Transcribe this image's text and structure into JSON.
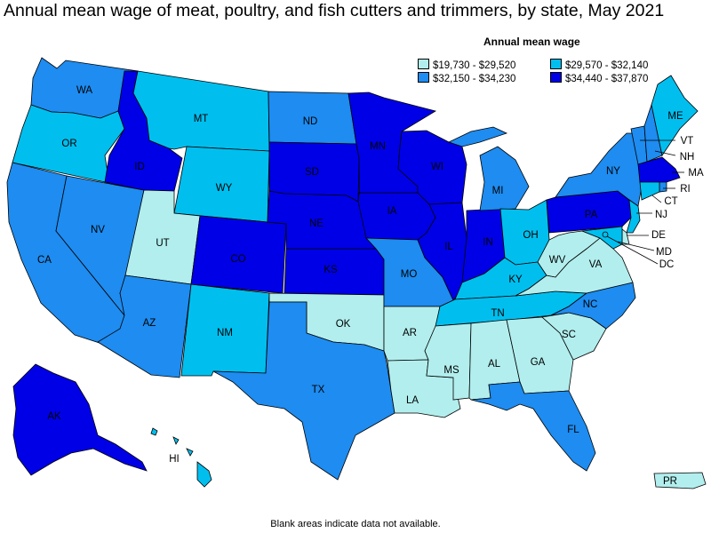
{
  "title": "Annual mean wage of meat, poultry, and fish cutters and trimmers, by state, May 2021",
  "legend": {
    "title": "Annual mean wage",
    "items": [
      {
        "label": "$19,730 - $29,520",
        "color": "#b2eeee"
      },
      {
        "label": "$29,570 - $32,140",
        "color": "#00bfef"
      },
      {
        "label": "$32,150 - $34,230",
        "color": "#1e8cf0"
      },
      {
        "label": "$34,440 - $37,870",
        "color": "#0000e6"
      }
    ]
  },
  "footnote": "Blank areas indicate data not available.",
  "states": {
    "WA": {
      "label": "WA",
      "tier": 2
    },
    "OR": {
      "label": "OR",
      "tier": 1
    },
    "CA": {
      "label": "CA",
      "tier": 2
    },
    "NV": {
      "label": "NV",
      "tier": 2
    },
    "ID": {
      "label": "ID",
      "tier": 3
    },
    "MT": {
      "label": "MT",
      "tier": 1
    },
    "WY": {
      "label": "WY",
      "tier": 1
    },
    "UT": {
      "label": "UT",
      "tier": 0
    },
    "AZ": {
      "label": "AZ",
      "tier": 2
    },
    "NM": {
      "label": "NM",
      "tier": 1
    },
    "CO": {
      "label": "CO",
      "tier": 3
    },
    "ND": {
      "label": "ND",
      "tier": 2
    },
    "SD": {
      "label": "SD",
      "tier": 3
    },
    "NE": {
      "label": "NE",
      "tier": 3
    },
    "KS": {
      "label": "KS",
      "tier": 3
    },
    "OK": {
      "label": "OK",
      "tier": 0
    },
    "TX": {
      "label": "TX",
      "tier": 2
    },
    "MN": {
      "label": "MN",
      "tier": 3
    },
    "IA": {
      "label": "IA",
      "tier": 3
    },
    "MO": {
      "label": "MO",
      "tier": 2
    },
    "AR": {
      "label": "AR",
      "tier": 0
    },
    "LA": {
      "label": "LA",
      "tier": 0
    },
    "WI": {
      "label": "WI",
      "tier": 3
    },
    "IL": {
      "label": "IL",
      "tier": 3
    },
    "IN": {
      "label": "IN",
      "tier": 3
    },
    "MI": {
      "label": "MI",
      "tier": 2
    },
    "OH": {
      "label": "OH",
      "tier": 1
    },
    "KY": {
      "label": "KY",
      "tier": 1
    },
    "TN": {
      "label": "TN",
      "tier": 1
    },
    "MS": {
      "label": "MS",
      "tier": 0
    },
    "AL": {
      "label": "AL",
      "tier": 0
    },
    "GA": {
      "label": "GA",
      "tier": 0
    },
    "FL": {
      "label": "FL",
      "tier": 2
    },
    "SC": {
      "label": "SC",
      "tier": 0
    },
    "NC": {
      "label": "NC",
      "tier": 2
    },
    "VA": {
      "label": "VA",
      "tier": 0
    },
    "WV": {
      "label": "WV",
      "tier": 0
    },
    "PA": {
      "label": "PA",
      "tier": 3
    },
    "NY": {
      "label": "NY",
      "tier": 2
    },
    "ME": {
      "label": "ME",
      "tier": 1
    },
    "VT": {
      "label": "VT",
      "tier": 2
    },
    "NH": {
      "label": "NH",
      "tier": 2
    },
    "MA": {
      "label": "MA",
      "tier": 3
    },
    "RI": {
      "label": "RI",
      "tier": 2
    },
    "CT": {
      "label": "CT",
      "tier": 1
    },
    "NJ": {
      "label": "NJ",
      "tier": 1
    },
    "DE": {
      "label": "DE",
      "tier": 0
    },
    "MD": {
      "label": "MD",
      "tier": 1
    },
    "DC": {
      "label": "DC",
      "tier": 1
    },
    "AK": {
      "label": "AK",
      "tier": 3
    },
    "HI": {
      "label": "HI",
      "tier": 1
    },
    "PR": {
      "label": "PR",
      "tier": 0
    }
  }
}
